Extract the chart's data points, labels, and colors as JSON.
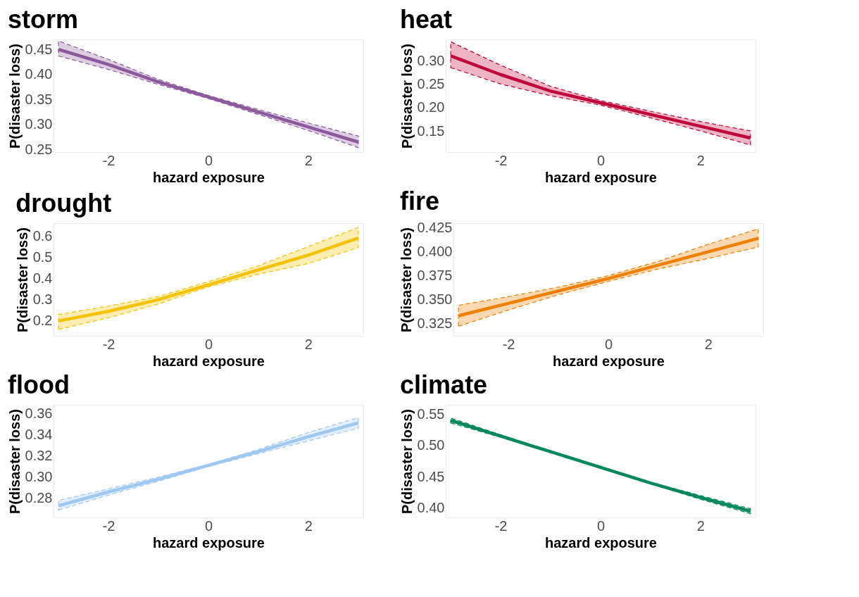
{
  "chart_data": [
    {
      "type": "line",
      "title": "storm",
      "xlabel": "hazard exposure",
      "ylabel": "P(disaster loss)",
      "x": [
        -3,
        -2,
        -1,
        0,
        1,
        2,
        3
      ],
      "xlim": [
        -3.1,
        3.1
      ],
      "xticks": [
        -2,
        0,
        2
      ],
      "ylim": [
        0.245,
        0.47
      ],
      "yticks": [
        0.25,
        {
          "value": 0.3,
          "label": "0.30"
        },
        0.35,
        {
          "value": 0.4,
          "label": "0.40"
        },
        0.45
      ],
      "grid": false,
      "series": [
        {
          "color": "#8c5a9c",
          "values": [
            0.45,
            0.42,
            0.385,
            0.355,
            0.325,
            0.295,
            0.265
          ],
          "lower": [
            0.437,
            0.41,
            0.38,
            0.352,
            0.32,
            0.288,
            0.254
          ],
          "upper": [
            0.467,
            0.43,
            0.39,
            0.358,
            0.33,
            0.303,
            0.277
          ]
        }
      ]
    },
    {
      "type": "line",
      "title": "heat",
      "xlabel": "hazard exposure",
      "ylabel": "P(disaster loss)",
      "x": [
        -3,
        -2,
        -1,
        0,
        1,
        2,
        3
      ],
      "xlim": [
        -3.1,
        3.1
      ],
      "xticks": [
        -2,
        0,
        2
      ],
      "ylim": [
        0.105,
        0.345
      ],
      "yticks": [
        0.15,
        {
          "value": 0.2,
          "label": "0.20"
        },
        0.25,
        {
          "value": 0.3,
          "label": "0.30"
        }
      ],
      "grid": false,
      "series": [
        {
          "color": "#c0053a",
          "values": [
            0.31,
            0.27,
            0.235,
            0.21,
            0.185,
            0.16,
            0.135
          ],
          "lower": [
            0.285,
            0.25,
            0.225,
            0.205,
            0.178,
            0.15,
            0.12
          ],
          "upper": [
            0.34,
            0.29,
            0.245,
            0.215,
            0.192,
            0.17,
            0.15
          ]
        }
      ]
    },
    {
      "type": "line",
      "title": "drought",
      "xlabel": "hazard exposure",
      "ylabel": "P(disaster loss)",
      "x": [
        -3,
        -2,
        -1,
        0,
        1,
        2,
        3
      ],
      "xlim": [
        -3.1,
        3.1
      ],
      "xticks": [
        -2,
        0,
        2
      ],
      "ylim": [
        0.13,
        0.66
      ],
      "yticks": [
        0.2,
        0.3,
        0.4,
        0.5,
        0.6
      ],
      "grid": false,
      "series": [
        {
          "color": "#f5c200",
          "values": [
            0.2,
            0.245,
            0.3,
            0.37,
            0.44,
            0.51,
            0.59
          ],
          "lower": [
            0.16,
            0.215,
            0.28,
            0.36,
            0.42,
            0.47,
            0.545
          ],
          "upper": [
            0.23,
            0.27,
            0.315,
            0.385,
            0.46,
            0.55,
            0.64
          ]
        }
      ]
    },
    {
      "type": "line",
      "title": "fire",
      "xlabel": "hazard exposure",
      "ylabel": "P(disaster loss)",
      "x": [
        -3,
        -2,
        -1,
        0,
        1,
        2,
        3
      ],
      "xlim": [
        -3.1,
        3.1
      ],
      "xticks": [
        -2,
        0,
        2
      ],
      "ylim": [
        0.312,
        0.43
      ],
      "yticks": [
        0.325,
        {
          "value": 0.35,
          "label": "0.350"
        },
        0.375,
        {
          "value": 0.4,
          "label": "0.400"
        },
        0.425
      ],
      "grid": false,
      "series": [
        {
          "color": "#f08000",
          "values": [
            0.333,
            0.346,
            0.359,
            0.372,
            0.386,
            0.4,
            0.414
          ],
          "lower": [
            0.322,
            0.339,
            0.355,
            0.369,
            0.382,
            0.393,
            0.405
          ],
          "upper": [
            0.344,
            0.353,
            0.363,
            0.375,
            0.39,
            0.408,
            0.424
          ]
        }
      ]
    },
    {
      "type": "line",
      "title": "flood",
      "xlabel": "hazard exposure",
      "ylabel": "P(disaster loss)",
      "x": [
        -3,
        -2,
        -1,
        0,
        1,
        2,
        3
      ],
      "xlim": [
        -3.1,
        3.1
      ],
      "xticks": [
        -2,
        0,
        2
      ],
      "ylim": [
        0.262,
        0.368
      ],
      "yticks": [
        0.28,
        {
          "value": 0.3,
          "label": "0.30"
        },
        0.32,
        0.34,
        0.36
      ],
      "grid": false,
      "series": [
        {
          "color": "#9ec8ef",
          "values": [
            0.273,
            0.286,
            0.298,
            0.311,
            0.324,
            0.338,
            0.351
          ],
          "lower": [
            0.269,
            0.283,
            0.296,
            0.31,
            0.322,
            0.334,
            0.346
          ],
          "upper": [
            0.278,
            0.289,
            0.3,
            0.312,
            0.326,
            0.342,
            0.356
          ]
        }
      ]
    },
    {
      "type": "line",
      "title": "climate",
      "xlabel": "hazard exposure",
      "ylabel": "P(disaster loss)",
      "x": [
        -3,
        -2,
        -1,
        0,
        1,
        2,
        3
      ],
      "xlim": [
        -3.1,
        3.1
      ],
      "xticks": [
        -2,
        0,
        2
      ],
      "ylim": [
        0.385,
        0.565
      ],
      "yticks": [
        {
          "value": 0.4,
          "label": "0.40"
        },
        0.45,
        {
          "value": 0.5,
          "label": "0.50"
        },
        0.55
      ],
      "grid": false,
      "series": [
        {
          "color": "#00875a",
          "values": [
            0.54,
            0.515,
            0.49,
            0.465,
            0.44,
            0.417,
            0.395
          ],
          "lower": [
            0.536,
            0.513,
            0.489,
            0.464,
            0.439,
            0.414,
            0.391
          ],
          "upper": [
            0.544,
            0.517,
            0.491,
            0.466,
            0.441,
            0.42,
            0.399
          ]
        }
      ]
    }
  ]
}
